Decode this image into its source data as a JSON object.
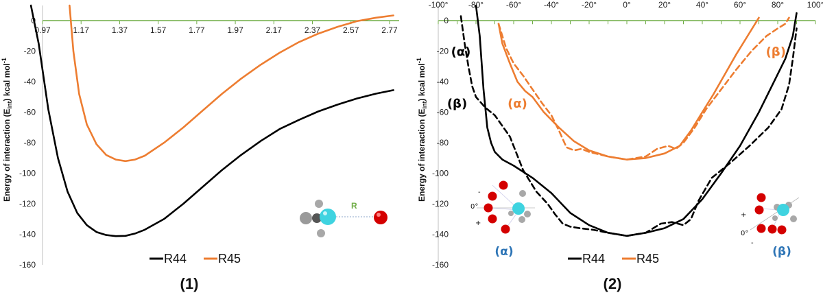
{
  "colors": {
    "r44": "#000000",
    "r45": "#ED7D31",
    "axis": "#70AD47",
    "label_blue": "#2E75B6",
    "oxygen": "#D40000",
    "carbon": "#3FD3E0",
    "hydrogen": "#A8A8A8"
  },
  "chart_data": [
    {
      "type": "line",
      "panel_label": "(1)",
      "ylabel": "Energy of interaction (E_int) kcal mol-1",
      "ylabel_parts": {
        "main": "Energy of interaction (E",
        "sub": "int",
        "after": ") kcal mol",
        "sup": "-1"
      },
      "xlabel": "",
      "xlim": [
        0.97,
        2.82
      ],
      "ylim": [
        -160,
        10
      ],
      "x_ticks": [
        "0.97",
        "1.17",
        "1.37",
        "1.57",
        "1.77",
        "1.97",
        "2.17",
        "2.37",
        "2.57",
        "2.77"
      ],
      "y_ticks": [
        "0",
        "-20",
        "-40",
        "-60",
        "-80",
        "-100",
        "-120",
        "-140",
        "-160"
      ],
      "legend": [
        "R44",
        "R45"
      ],
      "inset_label": "R",
      "series": [
        {
          "name": "R44",
          "style": "solid",
          "x": [
            0.91,
            0.95,
            1.0,
            1.05,
            1.1,
            1.15,
            1.2,
            1.25,
            1.3,
            1.35,
            1.4,
            1.45,
            1.5,
            1.6,
            1.7,
            1.8,
            1.9,
            2.0,
            2.1,
            2.2,
            2.3,
            2.4,
            2.5,
            2.6,
            2.7,
            2.79
          ],
          "y": [
            10,
            -15,
            -58,
            -90,
            -112,
            -126,
            -134,
            -138.5,
            -140.5,
            -141.2,
            -141,
            -139.5,
            -137,
            -130,
            -120,
            -109,
            -98,
            -88,
            -79,
            -71,
            -65,
            -59.5,
            -55,
            -51,
            -47.8,
            -45.5
          ]
        },
        {
          "name": "R45",
          "style": "solid",
          "x": [
            1.11,
            1.13,
            1.16,
            1.2,
            1.25,
            1.3,
            1.35,
            1.4,
            1.45,
            1.5,
            1.6,
            1.7,
            1.8,
            1.9,
            2.0,
            2.1,
            2.2,
            2.3,
            2.4,
            2.5,
            2.6,
            2.7,
            2.79
          ],
          "y": [
            10,
            -20,
            -48,
            -68,
            -81,
            -88,
            -91,
            -92,
            -91,
            -88.5,
            -80,
            -70,
            -59,
            -48,
            -38,
            -29,
            -21,
            -14,
            -8.5,
            -4,
            -0.3,
            2,
            3.5
          ]
        }
      ]
    },
    {
      "type": "line",
      "panel_label": "(2)",
      "ylabel": "Energy of interaction (E_int) kcal mol-1",
      "ylabel_parts": {
        "main": "Energy of interaction (E",
        "sub": "int",
        "after": ") kcal mol",
        "sup": "-1"
      },
      "xlabel": "",
      "xlim": [
        -100,
        100
      ],
      "ylim": [
        -160,
        10
      ],
      "x_ticks": [
        "-100°",
        "-80°",
        "-60°",
        "-40°",
        "-20°",
        "0°",
        "20°",
        "40°",
        "60°",
        "80°",
        "100°"
      ],
      "y_ticks": [
        "0",
        "-20",
        "-40",
        "-60",
        "-80",
        "-100",
        "-120",
        "-140",
        "-160"
      ],
      "legend": [
        "R44",
        "R45"
      ],
      "curve_labels": [
        {
          "text": "(α)",
          "series": "R44",
          "x": -88,
          "y": -23
        },
        {
          "text": "(β)",
          "series": "R44",
          "x": -90,
          "y": -57
        },
        {
          "text": "(α)",
          "series": "R45",
          "x": -58,
          "y": -57
        },
        {
          "text": "(β)",
          "series": "R45",
          "x": 79,
          "y": -23
        }
      ],
      "inset_labels": {
        "alpha": "(α)",
        "beta": "(β)",
        "zero": "0°",
        "plus": "+",
        "minus": "-"
      },
      "series": [
        {
          "name": "R44 (α)",
          "style": "solid",
          "x": [
            -80,
            -78,
            -76,
            -74,
            -72,
            -70,
            -66,
            -60,
            -50,
            -40,
            -30,
            -20,
            -10,
            0,
            10,
            20,
            30,
            40,
            50,
            60,
            70,
            78,
            84,
            88,
            90
          ],
          "y": [
            10,
            -10,
            -45,
            -70,
            -80,
            -86,
            -91,
            -95,
            -103,
            -113,
            -126,
            -134,
            -139,
            -141,
            -139,
            -136,
            -130,
            -117,
            -100,
            -82,
            -60,
            -40,
            -25,
            -10,
            5
          ]
        },
        {
          "name": "R44 (β)",
          "style": "dashed",
          "x": [
            -88,
            -86,
            -84,
            -82,
            -80,
            -75,
            -70,
            -62,
            -55,
            -48,
            -42,
            -38,
            -34,
            -30,
            -25,
            -18,
            -10,
            0,
            10,
            18,
            24,
            30,
            34,
            38,
            45,
            55,
            65,
            75,
            82,
            86,
            88,
            90
          ],
          "y": [
            3,
            -15,
            -30,
            -43,
            -50,
            -57,
            -62,
            -76,
            -98,
            -112,
            -120,
            -127,
            -133,
            -135,
            -136,
            -137,
            -139,
            -141,
            -139,
            -133,
            -132,
            -134,
            -130,
            -118,
            -103,
            -93,
            -82,
            -70,
            -58,
            -42,
            -25,
            -5
          ]
        },
        {
          "name": "R45 (α)",
          "style": "solid",
          "x": [
            -68,
            -66,
            -62,
            -58,
            -54,
            -50,
            -44,
            -36,
            -28,
            -20,
            -10,
            0,
            10,
            20,
            28,
            34,
            40,
            46,
            52,
            58,
            64,
            70
          ],
          "y": [
            -2,
            -15,
            -28,
            -40,
            -46,
            -50,
            -60,
            -70,
            -79,
            -85,
            -89,
            -91,
            -90,
            -87,
            -82,
            -72,
            -60,
            -48,
            -35,
            -22,
            -10,
            2
          ]
        },
        {
          "name": "R45 (β)",
          "style": "dashed",
          "x": [
            -68,
            -64,
            -60,
            -55,
            -50,
            -45,
            -40,
            -36,
            -32,
            -28,
            -24,
            -20,
            -10,
            0,
            10,
            16,
            22,
            26,
            30,
            36,
            42,
            50,
            58,
            66,
            74,
            80,
            84,
            86
          ],
          "y": [
            -2,
            -18,
            -28,
            -36,
            -45,
            -54,
            -62,
            -72,
            -83,
            -85,
            -84,
            -86,
            -89,
            -91,
            -89,
            -84,
            -82,
            -84,
            -80,
            -70,
            -58,
            -45,
            -32,
            -20,
            -10,
            -5,
            -2,
            2
          ]
        }
      ]
    }
  ]
}
